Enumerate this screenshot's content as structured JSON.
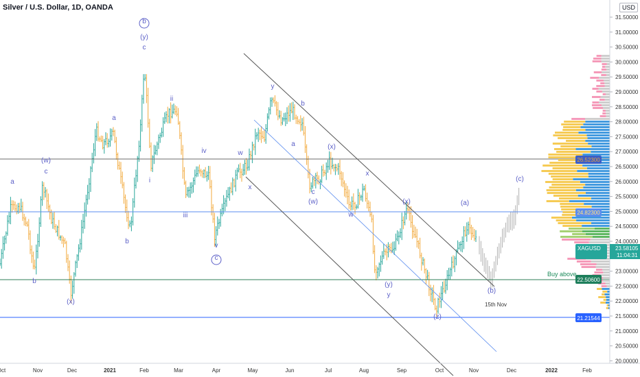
{
  "header": {
    "symbol_title": "Silver / U.S. Dollar, 1D, OANDA",
    "currency_button": "USD"
  },
  "colors": {
    "up": "#26a69a",
    "down": "#f2a93b",
    "wave": "#5b5fc7",
    "hline": "#5b8def",
    "channel": "#444444",
    "vp_up": "#2f8fdc",
    "vp_down": "#f5c542",
    "vp_pink": "#f48fb1",
    "badge_blue": "#2962ff",
    "badge_green": "#26a69a"
  },
  "price_axis": {
    "ticks": [
      "31.50000",
      "31.00000",
      "30.50000",
      "30.00000",
      "29.50000",
      "29.00000",
      "28.50000",
      "28.00000",
      "27.50000",
      "27.00000",
      "26.50000",
      "26.00000",
      "25.50000",
      "25.00000",
      "24.50000",
      "24.00000",
      "23.50000",
      "23.00000",
      "22.50000",
      "22.00000",
      "21.50000",
      "21.00000",
      "20.50000",
      "20.00000"
    ]
  },
  "time_axis": {
    "ticks": [
      "Oct",
      "Nov",
      "Dec",
      "2021",
      "Feb",
      "Mar",
      "Apr",
      "May",
      "Jun",
      "Jul",
      "Aug",
      "Sep",
      "Oct",
      "Nov",
      "Dec",
      "2022",
      "Feb"
    ]
  },
  "price_badges": {
    "current_symbol": "XAGUSD",
    "current_price": "23.58105",
    "countdown": "11:04:31",
    "buy_level": "22.50600",
    "support_level": "21.21544",
    "vp_high": "26.52300",
    "vp_poc": "24.82300"
  },
  "annotations": {
    "buy_above": "Buy above",
    "date_note": "15th Nov"
  },
  "wave_labels": [
    {
      "t": "a"
    },
    {
      "t": "b"
    },
    {
      "t": "(w)"
    },
    {
      "t": "c"
    },
    {
      "t": "(x)"
    },
    {
      "t": "b"
    },
    {
      "t": "a"
    },
    {
      "t": "b"
    },
    {
      "t": "(y)"
    },
    {
      "t": "c"
    },
    {
      "t": "i"
    },
    {
      "t": "ii"
    },
    {
      "t": "iii"
    },
    {
      "t": "iv"
    },
    {
      "t": "v"
    },
    {
      "t": "c"
    },
    {
      "t": "w"
    },
    {
      "t": "x"
    },
    {
      "t": "y"
    },
    {
      "t": "a"
    },
    {
      "t": "b"
    },
    {
      "t": "c"
    },
    {
      "t": "(w)"
    },
    {
      "t": "(x)"
    },
    {
      "t": "w"
    },
    {
      "t": "x"
    },
    {
      "t": "y"
    },
    {
      "t": "(y)"
    },
    {
      "t": "(x)"
    },
    {
      "t": "(z)"
    },
    {
      "t": "(a)"
    },
    {
      "t": "(b)"
    },
    {
      "t": "(c)"
    }
  ]
}
